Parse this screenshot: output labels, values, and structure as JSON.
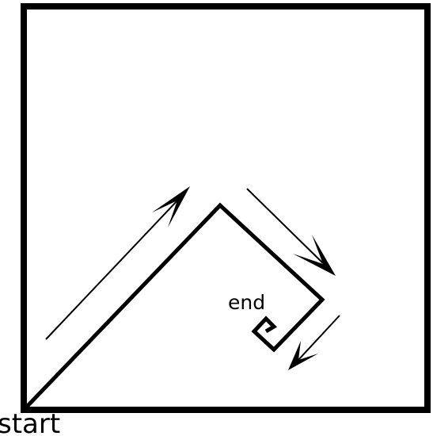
{
  "labels": {
    "start": "start",
    "end": "end"
  },
  "colors": {
    "stroke": "#000000",
    "background": "#ffffff"
  }
}
